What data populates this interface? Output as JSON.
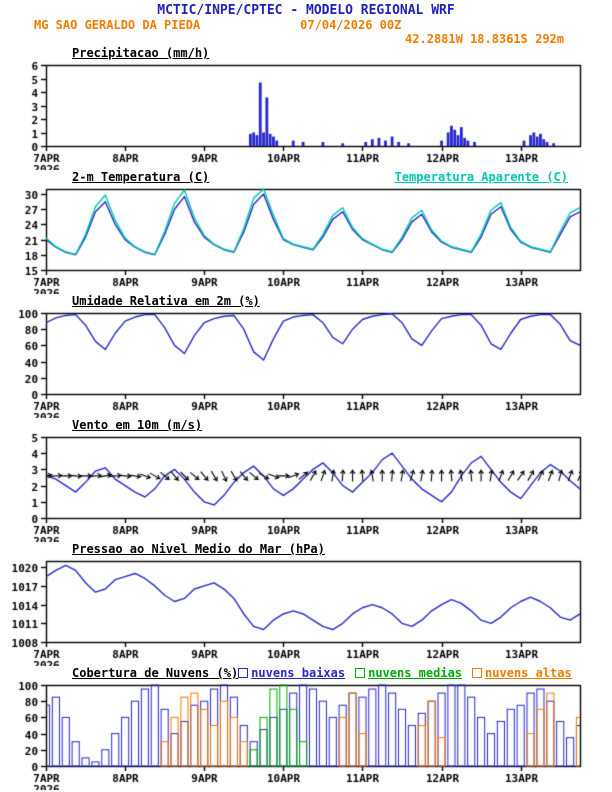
{
  "header": {
    "title": "MCTIC/INPE/CPTEC - MODELO REGIONAL WRF",
    "station": "MG SAO GERALDO DA PIEDA",
    "run": "07/04/2026 00Z",
    "coords": "42.2881W 18.8361S 292m"
  },
  "colors": {
    "title_blue": "#2222bb",
    "orange": "#f07d00",
    "line_blue": "#2727cc",
    "cyan": "#00c8b0",
    "green": "#00aa00",
    "black": "#000000"
  },
  "x_axis": {
    "t_max": 162,
    "ticks": [
      {
        "t": 0,
        "label": "7APR",
        "sub": "2026"
      },
      {
        "t": 24,
        "label": "8APR"
      },
      {
        "t": 48,
        "label": "9APR"
      },
      {
        "t": 72,
        "label": "10APR"
      },
      {
        "t": 96,
        "label": "11APR"
      },
      {
        "t": 120,
        "label": "12APR"
      },
      {
        "t": 144,
        "label": "13APR"
      }
    ]
  },
  "chart_data": [
    {
      "type": "bar",
      "title": "Precipitacao (mm/h)",
      "ylabel": "mm/h",
      "ylim": [
        0,
        6
      ],
      "yticks": [
        0,
        1,
        2,
        3,
        4,
        5,
        6
      ],
      "color": "#2727cc",
      "t": [
        62,
        63,
        64,
        65,
        66,
        67,
        68,
        69,
        70,
        75,
        78,
        84,
        90,
        97,
        99,
        101,
        103,
        105,
        107,
        110,
        120,
        122,
        123,
        124,
        125,
        126,
        127,
        128,
        130,
        145,
        147,
        148,
        149,
        150,
        151,
        152,
        154
      ],
      "values": [
        0.9,
        1.0,
        0.8,
        4.7,
        1.0,
        3.6,
        0.9,
        0.7,
        0.4,
        0.4,
        0.3,
        0.3,
        0.2,
        0.3,
        0.5,
        0.6,
        0.4,
        0.7,
        0.3,
        0.2,
        0.4,
        1.0,
        1.5,
        1.2,
        0.8,
        1.4,
        0.6,
        0.4,
        0.3,
        0.4,
        0.8,
        1.0,
        0.7,
        0.9,
        0.5,
        0.3,
        0.2
      ]
    },
    {
      "type": "line",
      "title": "2-m Temperatura (C)",
      "legend_right": {
        "label": "Temperatura Aparente (C)",
        "color": "#00c8b0"
      },
      "ylim": [
        15,
        31
      ],
      "yticks": [
        15,
        18,
        21,
        24,
        27,
        30
      ],
      "dt": 3,
      "series": [
        {
          "name": "2-m Temperatura (C)",
          "color": "#2727cc",
          "values": [
            21,
            19.5,
            18.5,
            18,
            21.5,
            26.5,
            28.5,
            24,
            21,
            19.5,
            18.5,
            18,
            22,
            27,
            29.5,
            24.5,
            21.5,
            20,
            19,
            18.5,
            22.5,
            28,
            30,
            25,
            21,
            20,
            19.5,
            19,
            21.5,
            25,
            26.5,
            23,
            21,
            20,
            19,
            18.5,
            21,
            24.5,
            26,
            22.5,
            20.5,
            19.5,
            19,
            18.5,
            21.5,
            26,
            27.5,
            23,
            20.5,
            19.5,
            19,
            18.5,
            22,
            25.5,
            26.5
          ]
        },
        {
          "name": "Temperatura Aparente (C)",
          "color": "#00c8b0",
          "values": [
            21.3,
            19.6,
            18.6,
            18.1,
            22,
            27.5,
            29.8,
            24.8,
            21.3,
            19.6,
            18.6,
            18.1,
            22.6,
            28.2,
            30.8,
            25.3,
            21.8,
            20.1,
            19.1,
            18.6,
            23.2,
            29.2,
            31,
            25.8,
            21.2,
            20.1,
            19.6,
            19.1,
            22,
            25.8,
            27.3,
            23.4,
            21.2,
            20.1,
            19.1,
            18.6,
            21.5,
            25.3,
            26.8,
            22.9,
            20.7,
            19.6,
            19.1,
            18.6,
            22.1,
            26.8,
            28.3,
            23.4,
            20.7,
            19.6,
            19.1,
            18.6,
            22.6,
            26.3,
            27.3
          ]
        }
      ]
    },
    {
      "type": "line",
      "title": "Umidade Relativa em 2m (%)",
      "ylim": [
        0,
        100
      ],
      "yticks": [
        0,
        20,
        40,
        60,
        80,
        100
      ],
      "dt": 3,
      "series": [
        {
          "name": "Umidade Relativa",
          "color": "#2727cc",
          "values": [
            88,
            94,
            97,
            98,
            85,
            65,
            55,
            75,
            90,
            95,
            98,
            98,
            82,
            60,
            50,
            72,
            88,
            93,
            96,
            97,
            80,
            52,
            42,
            68,
            90,
            95,
            97,
            98,
            88,
            70,
            62,
            80,
            92,
            96,
            98,
            99,
            88,
            68,
            60,
            78,
            93,
            96,
            98,
            98,
            85,
            62,
            55,
            75,
            92,
            96,
            98,
            98,
            86,
            66,
            60
          ]
        }
      ]
    },
    {
      "type": "wind",
      "title": "Vento em 10m (m/s)",
      "ylim": [
        0,
        5
      ],
      "yticks": [
        0,
        1,
        2,
        3,
        4,
        5
      ],
      "dt": 3,
      "color": "#2727cc",
      "arrow_level": 2.6,
      "speed": [
        2.6,
        2.4,
        2.0,
        1.6,
        2.2,
        2.9,
        3.1,
        2.4,
        2.0,
        1.6,
        1.3,
        1.8,
        2.6,
        3.0,
        2.4,
        1.6,
        1.0,
        0.8,
        1.4,
        2.2,
        2.8,
        3.2,
        2.6,
        1.8,
        1.4,
        1.8,
        2.4,
        3.0,
        3.4,
        2.8,
        2.0,
        1.6,
        2.2,
        2.8,
        3.6,
        4.0,
        3.2,
        2.4,
        1.8,
        1.4,
        1.0,
        1.6,
        2.6,
        3.4,
        3.8,
        3.0,
        2.2,
        1.6,
        1.2,
        2.0,
        2.8,
        3.3,
        2.9,
        2.3,
        1.8
      ],
      "dir": [
        80,
        85,
        90,
        95,
        90,
        85,
        80,
        85,
        95,
        100,
        110,
        120,
        130,
        140,
        135,
        130,
        140,
        150,
        155,
        150,
        140,
        130,
        120,
        110,
        90,
        70,
        50,
        30,
        20,
        10,
        5,
        0,
        355,
        350,
        0,
        5,
        10,
        15,
        10,
        5,
        0,
        355,
        350,
        355,
        0,
        10,
        20,
        30,
        35,
        30,
        25,
        20,
        15,
        20,
        25
      ]
    },
    {
      "type": "line",
      "title": "Pressao ao Nivel Medio do Mar (hPa)",
      "ylim": [
        1008,
        1021
      ],
      "yticks": [
        1008,
        1011,
        1014,
        1017,
        1020
      ],
      "dt": 3,
      "series": [
        {
          "name": "Pressao ao Nivel Medio do Mar",
          "color": "#2727cc",
          "values": [
            1018.5,
            1019.5,
            1020.3,
            1019.5,
            1017.5,
            1016,
            1016.5,
            1018,
            1018.5,
            1019,
            1018.2,
            1017,
            1015.5,
            1014.5,
            1015,
            1016.5,
            1017,
            1017.5,
            1016.5,
            1015,
            1012.5,
            1010.5,
            1010,
            1011.5,
            1012.5,
            1013,
            1012.5,
            1011.5,
            1010.5,
            1010,
            1011,
            1012.5,
            1013.5,
            1014,
            1013.5,
            1012.5,
            1011,
            1010.5,
            1011.5,
            1013,
            1014,
            1014.8,
            1014.2,
            1013,
            1011.5,
            1011,
            1012,
            1013.5,
            1014.5,
            1015.2,
            1014.5,
            1013.5,
            1012,
            1011.5,
            1012.5
          ]
        }
      ]
    },
    {
      "type": "multibar",
      "title": "Cobertura de Nuvens (%)",
      "ylim": [
        0,
        100
      ],
      "yticks": [
        0,
        20,
        40,
        60,
        80,
        100
      ],
      "dt": 3,
      "legend": [
        {
          "label": "nuvens baixas",
          "color": "#2727cc"
        },
        {
          "label": "nuvens medias",
          "color": "#00aa00"
        },
        {
          "label": "nuvens altas",
          "color": "#f07d00"
        }
      ],
      "series": [
        {
          "name": "nuvens baixas",
          "color": "#2727cc",
          "values": [
            75,
            85,
            60,
            30,
            10,
            5,
            20,
            40,
            60,
            80,
            95,
            100,
            70,
            40,
            55,
            75,
            80,
            95,
            100,
            85,
            50,
            30,
            45,
            60,
            70,
            90,
            100,
            95,
            80,
            60,
            75,
            90,
            85,
            95,
            100,
            90,
            70,
            50,
            65,
            80,
            90,
            100,
            100,
            85,
            60,
            40,
            55,
            70,
            75,
            90,
            95,
            80,
            55,
            35,
            50
          ]
        },
        {
          "name": "nuvens medias",
          "color": "#00aa00",
          "values": [
            0,
            0,
            0,
            0,
            0,
            0,
            0,
            0,
            0,
            0,
            0,
            0,
            0,
            0,
            0,
            0,
            0,
            0,
            0,
            0,
            0,
            20,
            60,
            95,
            100,
            70,
            30,
            0,
            0,
            0,
            0,
            0,
            0,
            0,
            0,
            0,
            0,
            0,
            0,
            0,
            0,
            0,
            0,
            0,
            0,
            0,
            0,
            0,
            0,
            0,
            0,
            0,
            0,
            0,
            0
          ]
        },
        {
          "name": "nuvens altas",
          "color": "#f07d00",
          "values": [
            0,
            0,
            0,
            0,
            0,
            0,
            0,
            0,
            0,
            0,
            0,
            0,
            30,
            60,
            85,
            90,
            70,
            50,
            80,
            60,
            30,
            0,
            0,
            0,
            0,
            0,
            0,
            0,
            0,
            0,
            60,
            90,
            40,
            0,
            0,
            0,
            0,
            0,
            50,
            80,
            35,
            0,
            0,
            0,
            0,
            0,
            0,
            0,
            0,
            40,
            70,
            90,
            0,
            0,
            60
          ]
        }
      ]
    }
  ]
}
